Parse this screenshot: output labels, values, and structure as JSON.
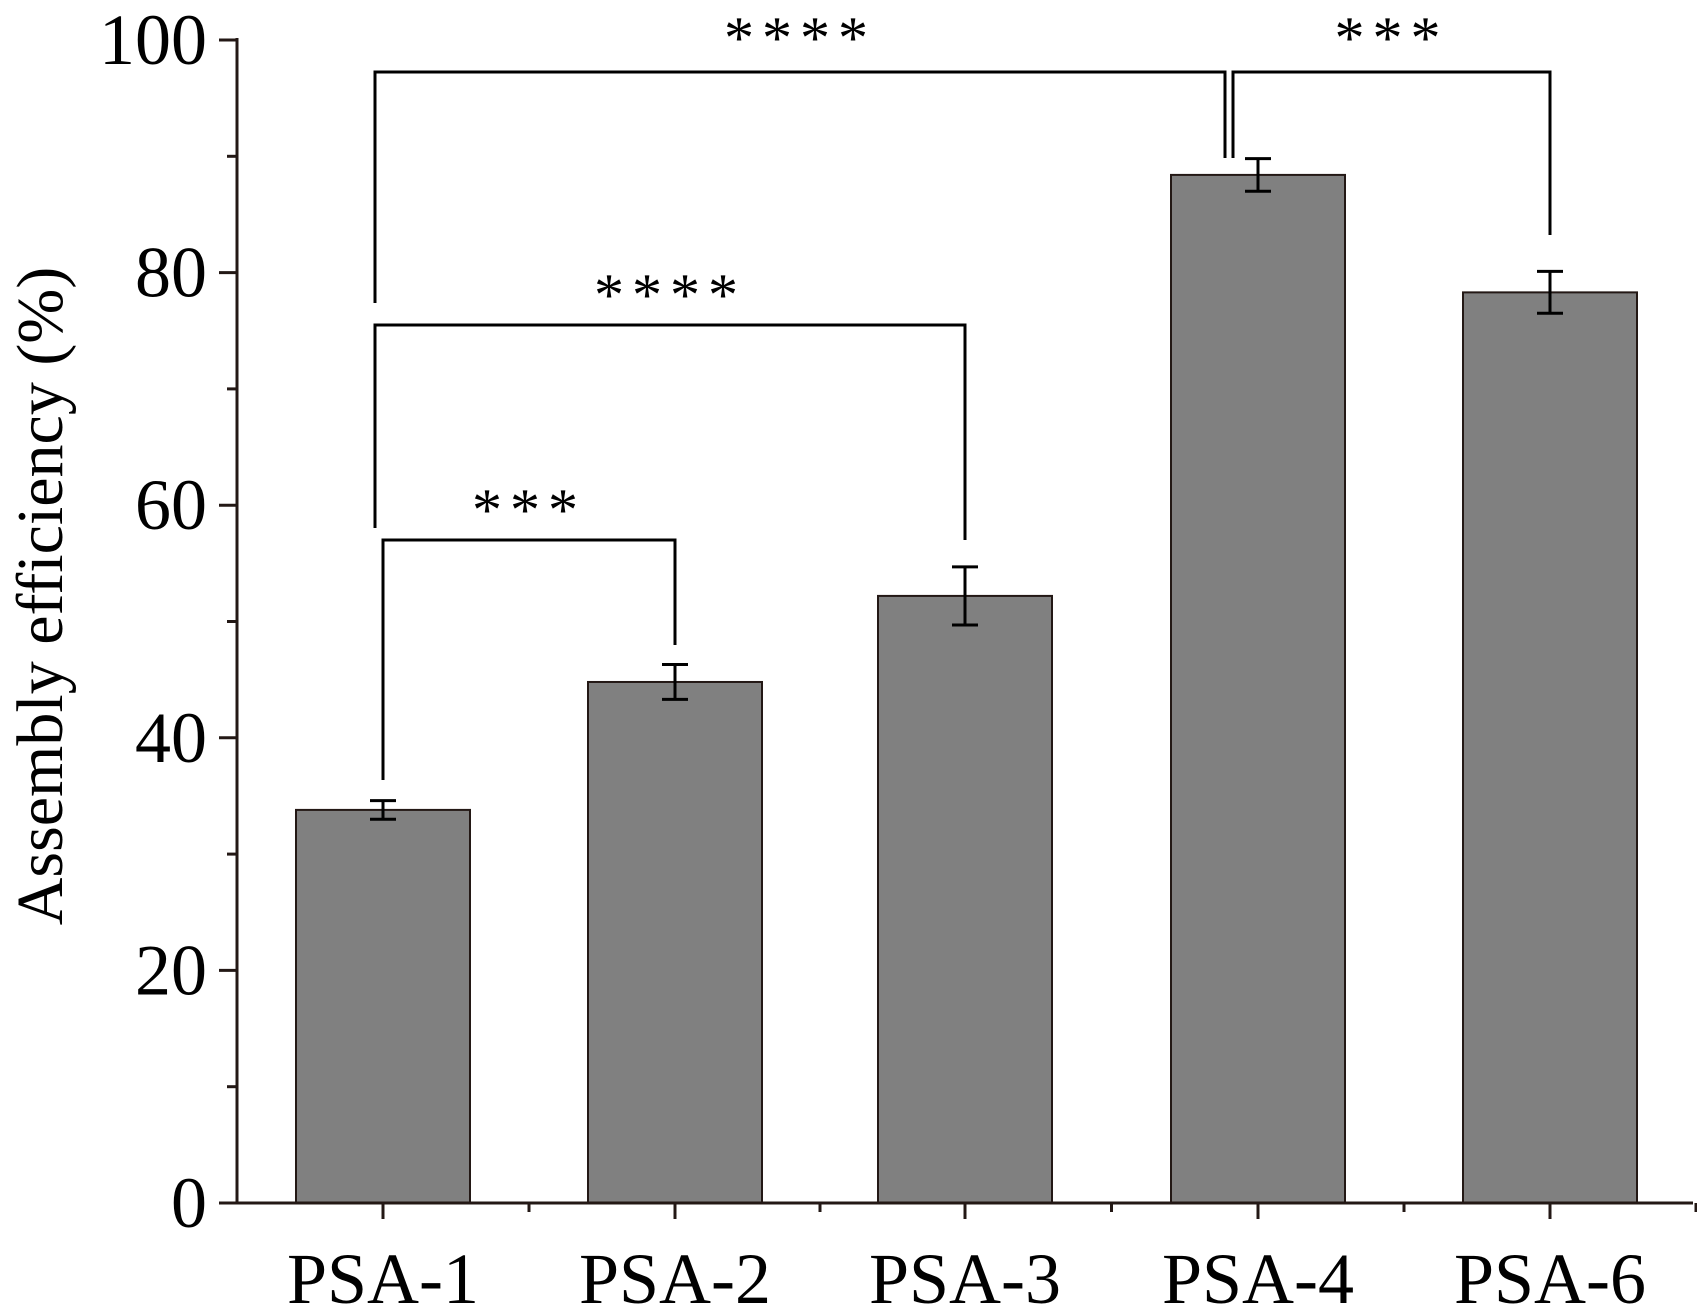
{
  "colors": {
    "bar_fill": "#808080",
    "bar_stroke": "#231815",
    "axis": "#231815",
    "annotation": "#000000"
  },
  "chart_data": {
    "type": "bar",
    "title": "",
    "xlabel": "",
    "ylabel": "Assembly efficiency (%)",
    "ylim": [
      0,
      100
    ],
    "yticks": [
      0,
      20,
      40,
      60,
      80,
      100
    ],
    "yticks_minor": [
      10,
      30,
      50,
      70,
      90
    ],
    "ytick_labels": [
      "0",
      "20",
      "40",
      "60",
      "80",
      "100"
    ],
    "categories": [
      "PSA-1",
      "PSA-2",
      "PSA-3",
      "PSA-4",
      "PSA-6"
    ],
    "values": [
      33.8,
      44.8,
      52.2,
      88.4,
      78.3
    ],
    "errors": [
      0.8,
      1.5,
      2.5,
      1.4,
      1.8
    ],
    "grid": false,
    "legend": "none",
    "significance": [
      {
        "from": "PSA-1",
        "to": "PSA-2",
        "label": "***"
      },
      {
        "from": "PSA-1",
        "to": "PSA-3",
        "label": "****"
      },
      {
        "from": "PSA-1",
        "to": "PSA-4",
        "label": "****"
      },
      {
        "from": "PSA-4",
        "to": "PSA-6",
        "label": "***"
      }
    ]
  }
}
